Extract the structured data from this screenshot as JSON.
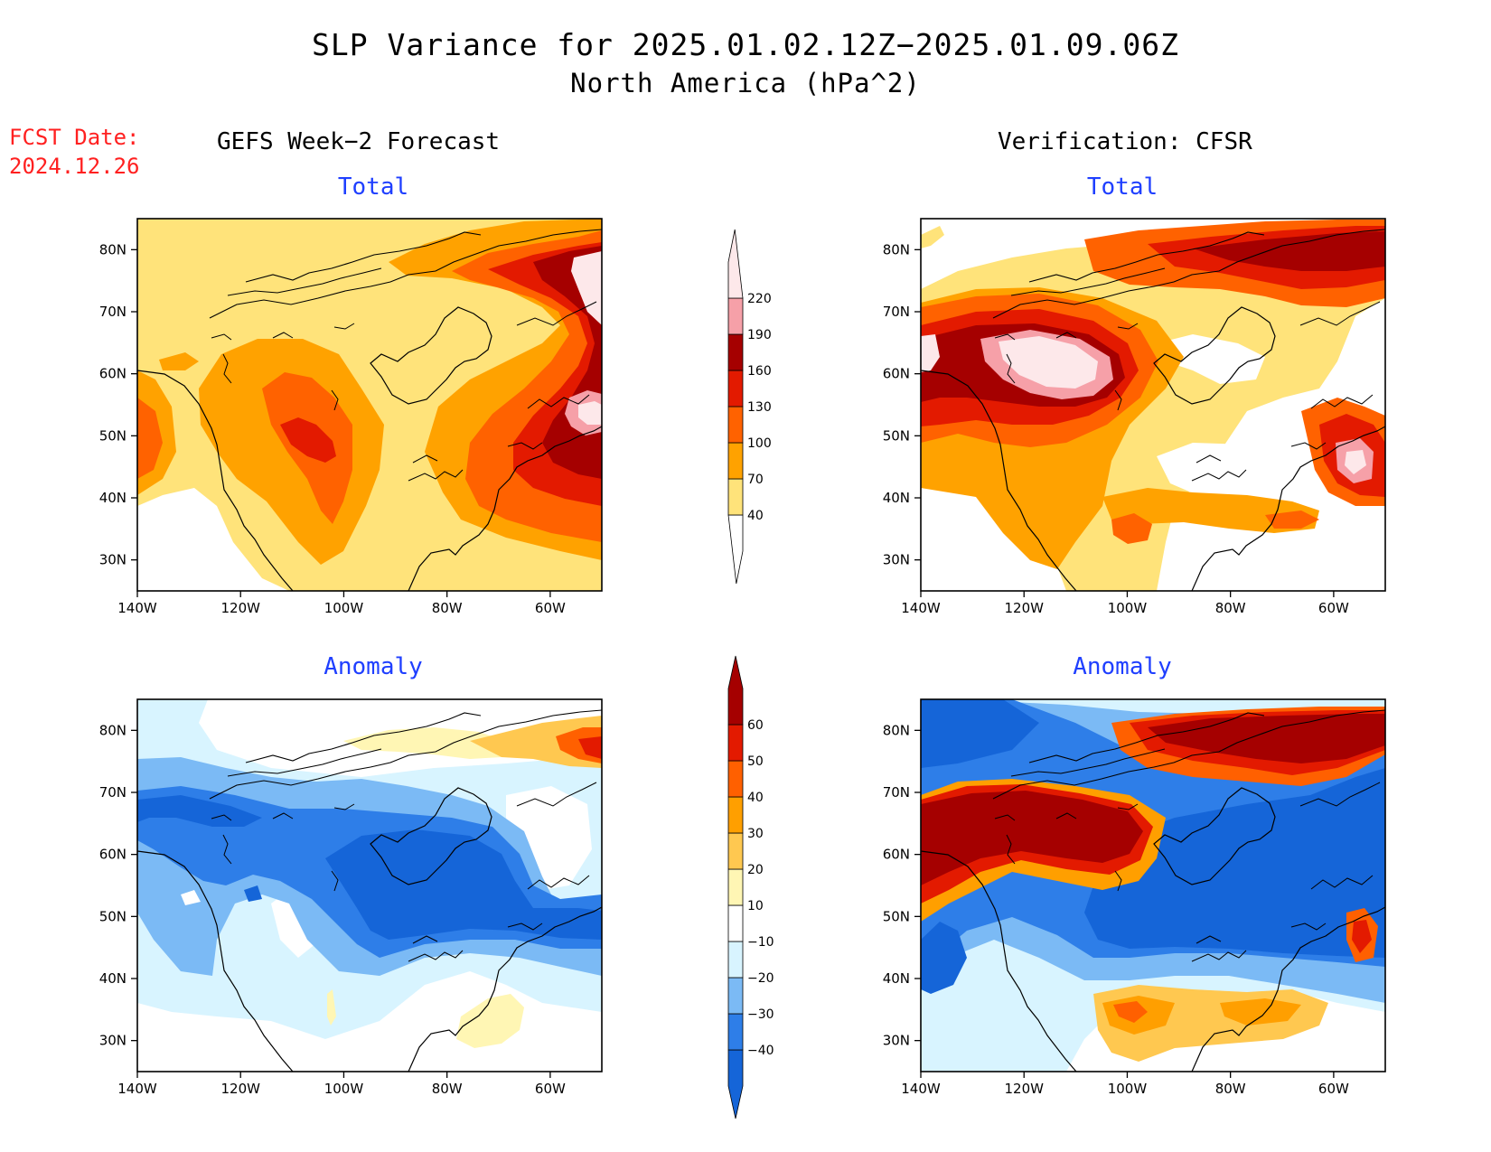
{
  "title": "SLP Variance for 2025.01.02.12Z−2025.01.09.06Z",
  "subtitle": "North America (hPa^2)",
  "fcst_date_label": "FCST Date:",
  "fcst_date": "2024.12.26",
  "left_column_title": "GEFS Week−2 Forecast",
  "right_column_title": "Verification: CFSR",
  "colors": {
    "land_outline": "#000000",
    "title_text": "#1f3fff",
    "fcst_text": "#ff2020"
  },
  "chart_data": [
    {
      "type": "heatmap",
      "panel": "gefs-total",
      "title": "Total",
      "x_ticks": [
        "140W",
        "120W",
        "100W",
        "80W",
        "60W"
      ],
      "y_ticks": [
        "80N",
        "70N",
        "60N",
        "50N",
        "40N",
        "30N"
      ],
      "xlim": [
        -140,
        -50
      ],
      "ylim": [
        25,
        85
      ],
      "colorbar": "total"
    },
    {
      "type": "heatmap",
      "panel": "cfsr-total",
      "title": "Total",
      "x_ticks": [
        "140W",
        "120W",
        "100W",
        "80W",
        "60W"
      ],
      "y_ticks": [
        "80N",
        "70N",
        "60N",
        "50N",
        "40N",
        "30N"
      ],
      "xlim": [
        -140,
        -50
      ],
      "ylim": [
        25,
        85
      ],
      "colorbar": "total"
    },
    {
      "type": "heatmap",
      "panel": "gefs-anomaly",
      "title": "Anomaly",
      "x_ticks": [
        "140W",
        "120W",
        "100W",
        "80W",
        "60W"
      ],
      "y_ticks": [
        "80N",
        "70N",
        "60N",
        "50N",
        "40N",
        "30N"
      ],
      "xlim": [
        -140,
        -50
      ],
      "ylim": [
        25,
        85
      ],
      "colorbar": "anomaly"
    },
    {
      "type": "heatmap",
      "panel": "cfsr-anomaly",
      "title": "Anomaly",
      "x_ticks": [
        "140W",
        "120W",
        "100W",
        "80W",
        "60W"
      ],
      "y_ticks": [
        "80N",
        "70N",
        "60N",
        "50N",
        "40N",
        "30N"
      ],
      "xlim": [
        -140,
        -50
      ],
      "ylim": [
        25,
        85
      ],
      "colorbar": "anomaly"
    }
  ],
  "colorbars": {
    "total": {
      "labels": [
        "40",
        "70",
        "100",
        "130",
        "160",
        "190",
        "220"
      ],
      "colors": [
        "#ffffff",
        "#ffe37a",
        "#ffa200",
        "#ff6200",
        "#e31a00",
        "#a50000",
        "#f6a0a8",
        "#fde8ea"
      ]
    },
    "anomaly": {
      "labels": [
        "−40",
        "−30",
        "−20",
        "−10",
        "10",
        "20",
        "30",
        "40",
        "50",
        "60"
      ],
      "colors": [
        "#1565d8",
        "#2e7ee8",
        "#7bbaf5",
        "#d8f4ff",
        "#ffffff",
        "#fff6b4",
        "#ffc850",
        "#ff9f00",
        "#ff6000",
        "#e31a00",
        "#a50000"
      ]
    }
  }
}
